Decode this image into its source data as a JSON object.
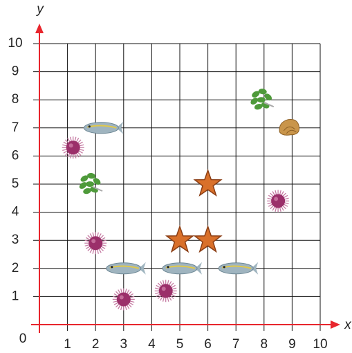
{
  "chart_data": {
    "type": "scatter",
    "x_label": "x",
    "y_label": "y",
    "origin": 0,
    "xlim": [
      0,
      10
    ],
    "ylim": [
      0,
      10
    ],
    "xticks": [
      1,
      2,
      3,
      4,
      5,
      6,
      7,
      8,
      9,
      10
    ],
    "yticks": [
      1,
      2,
      3,
      4,
      5,
      6,
      7,
      8,
      9,
      10
    ],
    "grid": true,
    "axis_color": "#e8262d",
    "series": [
      {
        "marker": "fish",
        "color": "#9fb4bf",
        "x": [
          2.2,
          3,
          5,
          7
        ],
        "values": [
          7,
          2,
          2,
          2
        ]
      },
      {
        "marker": "urchin",
        "color": "#9b2f6a",
        "x": [
          1.2,
          2,
          3,
          4.5,
          8.5
        ],
        "values": [
          6.3,
          2.9,
          0.9,
          1.2,
          4.4
        ]
      },
      {
        "marker": "starfish",
        "color": "#d9702a",
        "x": [
          6,
          5,
          6
        ],
        "values": [
          5,
          3,
          3
        ]
      },
      {
        "marker": "seaweed",
        "color": "#4e9a3a",
        "x": [
          1.8,
          7.9
        ],
        "values": [
          5,
          8
        ]
      },
      {
        "marker": "shell",
        "color": "#c9954a",
        "x": [
          8.9
        ],
        "values": [
          7
        ]
      }
    ]
  }
}
